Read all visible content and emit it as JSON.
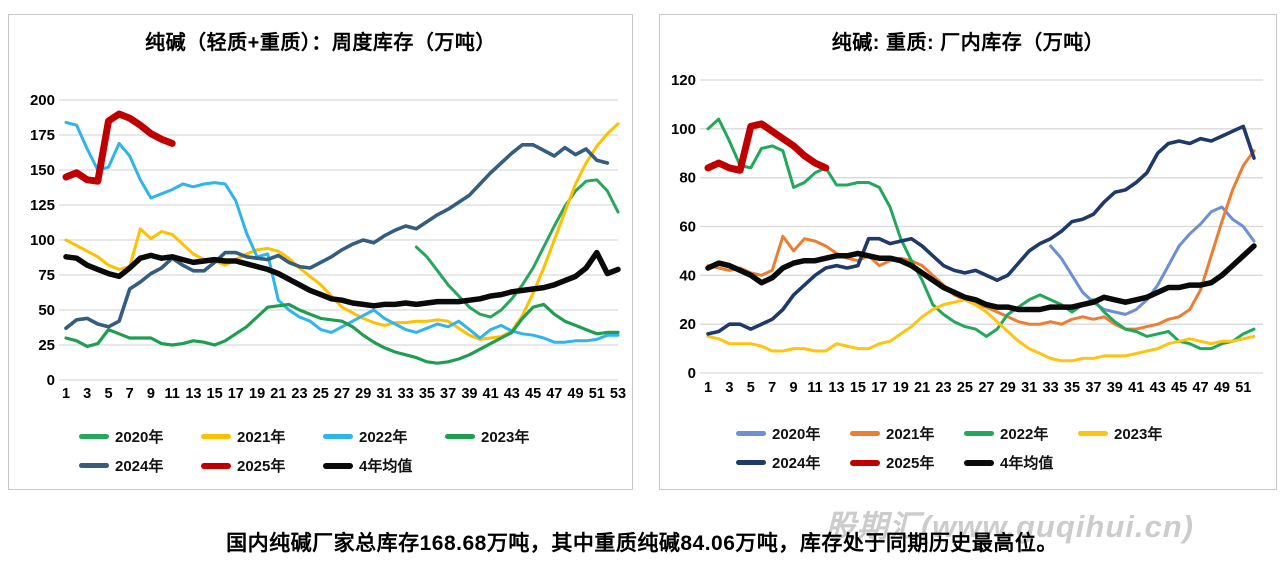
{
  "page": {
    "caption": "国内纯碱厂家总库存168.68万吨，其中重质纯碱84.06万吨，库存处于同期历史最高位。",
    "watermark": "股期汇(www.guqihui.cn)"
  },
  "colors": {
    "grid": "#d9d9d9",
    "axis_text": "#000000"
  },
  "chart_data": [
    {
      "type": "line",
      "title": "纯碱（轻质+重质）：周度库存（万吨）",
      "xlabel": "",
      "ylabel": "",
      "ylim": [
        0,
        200
      ],
      "ytick_step": 25,
      "yticks": [
        0,
        25,
        50,
        75,
        100,
        125,
        150,
        175,
        200
      ],
      "xticks": [
        1,
        3,
        5,
        7,
        9,
        11,
        13,
        15,
        17,
        19,
        21,
        23,
        25,
        27,
        29,
        31,
        33,
        35,
        37,
        39,
        41,
        43,
        45,
        47,
        49,
        51,
        53
      ],
      "grid": true,
      "legend_position": "bottom",
      "series": [
        {
          "name": "2020年",
          "color": "#27A65C",
          "width": 3,
          "start_week": 34,
          "values": [
            95,
            88,
            78,
            68,
            60,
            52,
            47,
            45,
            50,
            58,
            68,
            80,
            95,
            110,
            124,
            135,
            142,
            143,
            135,
            120
          ]
        },
        {
          "name": "2021年",
          "color": "#FFC000",
          "width": 3,
          "start_week": 1,
          "values": [
            100,
            96,
            92,
            88,
            82,
            79,
            81,
            108,
            101,
            106,
            104,
            97,
            90,
            86,
            85,
            82,
            86,
            90,
            93,
            94,
            92,
            87,
            80,
            74,
            68,
            60,
            52,
            48,
            44,
            41,
            39,
            41,
            41,
            42,
            42,
            43,
            42,
            37,
            32,
            29,
            30,
            31,
            35,
            46,
            62,
            80,
            100,
            120,
            140,
            155,
            167,
            176,
            183
          ]
        },
        {
          "name": "2022年",
          "color": "#2FB4EC",
          "width": 3,
          "start_week": 1,
          "values": [
            184,
            182,
            165,
            150,
            152,
            169,
            160,
            143,
            130,
            133,
            136,
            140,
            138,
            140,
            141,
            140,
            128,
            105,
            88,
            90,
            57,
            50,
            45,
            42,
            36,
            34,
            38,
            42,
            46,
            50,
            44,
            40,
            36,
            34,
            37,
            40,
            38,
            42,
            36,
            30,
            36,
            39,
            35,
            33,
            32,
            30,
            27,
            27,
            28,
            28,
            29,
            32,
            32
          ]
        },
        {
          "name": "2023年",
          "color": "#1F9E52",
          "width": 3.2,
          "start_week": 1,
          "values": [
            30,
            28,
            24,
            26,
            36,
            33,
            30,
            30,
            30,
            26,
            25,
            26,
            28,
            27,
            25,
            28,
            33,
            38,
            45,
            52,
            53,
            54,
            50,
            47,
            44,
            43,
            42,
            38,
            32,
            27,
            23,
            20,
            18,
            16,
            13,
            12,
            13,
            15,
            18,
            22,
            26,
            30,
            34,
            44,
            52,
            54,
            47,
            42,
            39,
            36,
            33,
            34,
            34
          ]
        },
        {
          "name": "2024年",
          "color": "#345D7E",
          "width": 3.6,
          "start_week": 1,
          "values": [
            37,
            43,
            44,
            40,
            38,
            42,
            65,
            70,
            76,
            80,
            87,
            82,
            78,
            78,
            84,
            91,
            91,
            88,
            87,
            86,
            89,
            84,
            81,
            80,
            84,
            88,
            93,
            97,
            100,
            98,
            103,
            107,
            110,
            108,
            113,
            118,
            122,
            127,
            132,
            140,
            148,
            155,
            162,
            168,
            168,
            164,
            160,
            166,
            161,
            165,
            157,
            155
          ]
        },
        {
          "name": "2025年",
          "color": "#C00000",
          "width": 7,
          "start_week": 1,
          "values": [
            145,
            148,
            143,
            142,
            185,
            190,
            187,
            182,
            176,
            172,
            169
          ]
        },
        {
          "name": "4年均值",
          "color": "#0a0a0a",
          "width": 5.5,
          "start_week": 1,
          "values": [
            88,
            87,
            82,
            79,
            76,
            74,
            80,
            87,
            89,
            87,
            88,
            86,
            84,
            85,
            86,
            85,
            85,
            83,
            81,
            79,
            76,
            72,
            68,
            64,
            61,
            58,
            57,
            55,
            54,
            53,
            54,
            54,
            55,
            54,
            55,
            56,
            56,
            56,
            57,
            58,
            60,
            61,
            63,
            64,
            65,
            66,
            68,
            71,
            74,
            80,
            91,
            76,
            79
          ]
        }
      ]
    },
    {
      "type": "line",
      "title": "纯碱: 重质: 厂内库存（万吨）",
      "xlabel": "",
      "ylabel": "",
      "ylim": [
        0,
        120
      ],
      "ytick_step": 20,
      "yticks": [
        0,
        20,
        40,
        60,
        80,
        100,
        120
      ],
      "xticks": [
        1,
        3,
        5,
        7,
        9,
        11,
        13,
        15,
        17,
        19,
        21,
        23,
        25,
        27,
        29,
        31,
        33,
        35,
        37,
        39,
        41,
        43,
        45,
        47,
        49,
        51
      ],
      "grid": true,
      "legend_position": "bottom",
      "series": [
        {
          "name": "2020年",
          "color": "#6D8FD3",
          "width": 3,
          "start_week": 33,
          "values": [
            52,
            47,
            40,
            33,
            29,
            26,
            25,
            24,
            26,
            30,
            36,
            44,
            52,
            57,
            61,
            66,
            68,
            63,
            60,
            54
          ]
        },
        {
          "name": "2021年",
          "color": "#ED7D31",
          "width": 3,
          "start_week": 1,
          "values": [
            44,
            43,
            42,
            43,
            41,
            40,
            42,
            56,
            50,
            55,
            54,
            52,
            49,
            47,
            46,
            48,
            44,
            46,
            47,
            46,
            44,
            40,
            36,
            32,
            30,
            28,
            27,
            25,
            23,
            21,
            20,
            20,
            21,
            20,
            22,
            23,
            22,
            23,
            20,
            18,
            18,
            19,
            20,
            22,
            23,
            26,
            34,
            48,
            62,
            75,
            85,
            91
          ]
        },
        {
          "name": "2022年",
          "color": "#21A85B",
          "width": 3,
          "start_week": 1,
          "values": [
            100,
            104,
            95,
            85,
            84,
            92,
            93,
            91,
            76,
            78,
            82,
            84,
            77,
            77,
            78,
            78,
            76,
            68,
            55,
            46,
            38,
            28,
            24,
            21,
            19,
            18,
            15,
            18,
            24,
            27,
            30,
            32,
            30,
            28,
            25,
            28,
            30,
            25,
            21,
            18,
            17,
            15,
            16,
            17,
            13,
            12,
            10,
            10,
            12,
            13,
            16,
            18
          ]
        },
        {
          "name": "2023年",
          "color": "#FFC412",
          "width": 3,
          "start_week": 1,
          "values": [
            15,
            14,
            12,
            12,
            12,
            11,
            9,
            9,
            10,
            10,
            9,
            9,
            12,
            11,
            10,
            10,
            12,
            13,
            16,
            19,
            23,
            26,
            28,
            29,
            30,
            28,
            25,
            21,
            17,
            13,
            10,
            8,
            6,
            5,
            5,
            6,
            6,
            7,
            7,
            7,
            8,
            9,
            10,
            12,
            13,
            14,
            13,
            12,
            13,
            13,
            14,
            15
          ]
        },
        {
          "name": "2024年",
          "color": "#1F3A68",
          "width": 3.6,
          "start_week": 1,
          "values": [
            16,
            17,
            20,
            20,
            18,
            20,
            22,
            26,
            32,
            36,
            40,
            43,
            44,
            43,
            44,
            55,
            55,
            53,
            54,
            55,
            52,
            48,
            44,
            42,
            41,
            42,
            40,
            38,
            40,
            45,
            50,
            53,
            55,
            58,
            62,
            63,
            65,
            70,
            74,
            75,
            78,
            82,
            90,
            94,
            95,
            94,
            96,
            95,
            97,
            99,
            101,
            88
          ]
        },
        {
          "name": "2025年",
          "color": "#C00000",
          "width": 7,
          "start_week": 1,
          "values": [
            84,
            86,
            84,
            83,
            101,
            102,
            99,
            96,
            93,
            89,
            86,
            84
          ]
        },
        {
          "name": "4年均值",
          "color": "#0a0a0a",
          "width": 5.5,
          "start_week": 1,
          "values": [
            43,
            45,
            44,
            42,
            40,
            37,
            39,
            43,
            45,
            46,
            46,
            47,
            48,
            48,
            49,
            48,
            47,
            47,
            46,
            44,
            41,
            38,
            35,
            33,
            31,
            30,
            28,
            27,
            27,
            26,
            26,
            26,
            27,
            27,
            27,
            28,
            29,
            31,
            30,
            29,
            30,
            31,
            33,
            35,
            35,
            36,
            36,
            37,
            40,
            44,
            48,
            52
          ]
        }
      ]
    }
  ]
}
